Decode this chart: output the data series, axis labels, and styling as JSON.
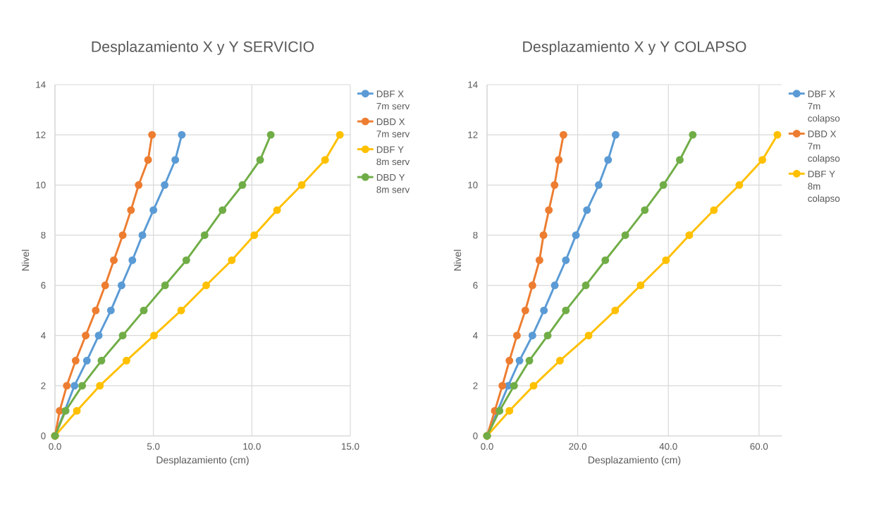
{
  "chart_data": [
    {
      "type": "line",
      "title": "Desplazamiento  X y Y SERVICIO",
      "xlabel": "Desplazamiento (cm)",
      "ylabel": "Nivel",
      "xlim": [
        0,
        15
      ],
      "ylim": [
        0,
        14
      ],
      "xticks": [
        {
          "value": 0,
          "label": "0.0"
        },
        {
          "value": 5,
          "label": "5.0"
        },
        {
          "value": 10,
          "label": "10.0"
        },
        {
          "value": 15,
          "label": "15.0"
        }
      ],
      "yticks": [
        0,
        2,
        4,
        6,
        8,
        10,
        12,
        14
      ],
      "grid": true,
      "legend": "right",
      "marker": "circle",
      "series": [
        {
          "name": "DBF X 7m serv",
          "color": "#5b9bd5",
          "x": [
            0,
            0.45,
            0.99,
            1.62,
            2.22,
            2.84,
            3.38,
            3.93,
            4.44,
            5.0,
            5.57,
            6.11,
            6.44
          ],
          "values": [
            0,
            null,
            2,
            3,
            4,
            5,
            6,
            7,
            8,
            9,
            10,
            11,
            12
          ]
        },
        {
          "name": "DBD X 7m serv",
          "color": "#ed7d31",
          "x": [
            0,
            0.24,
            0.6,
            1.05,
            1.56,
            2.07,
            2.55,
            2.99,
            3.44,
            3.86,
            4.25,
            4.73,
            4.93
          ],
          "values": [
            0,
            1,
            2,
            3,
            4,
            5,
            6,
            7,
            8,
            9,
            10,
            11,
            12
          ]
        },
        {
          "name": "DBF Y 8m serv",
          "color": "#ffc000",
          "x": [
            0,
            1.11,
            2.28,
            3.63,
            5.03,
            6.41,
            7.68,
            8.98,
            10.12,
            11.28,
            12.53,
            13.72,
            14.47
          ],
          "values": [
            0,
            1,
            2,
            3,
            4,
            5,
            6,
            7,
            8,
            9,
            10,
            11,
            12
          ]
        },
        {
          "name": "DBD Y 8m serv",
          "color": "#70ad47",
          "x": [
            0,
            0.54,
            1.38,
            2.36,
            3.44,
            4.51,
            5.59,
            6.67,
            7.6,
            8.51,
            9.52,
            10.42,
            10.96
          ],
          "values": [
            0,
            1,
            2,
            3,
            4,
            5,
            6,
            7,
            8,
            9,
            10,
            11,
            12
          ]
        }
      ]
    },
    {
      "type": "line",
      "title": "Desplazamiento  X y Y COLAPSO",
      "xlabel": "Desplazamiento (cm)",
      "ylabel": "Nivel",
      "xlim": [
        0,
        65
      ],
      "ylim": [
        0,
        14
      ],
      "xticks": [
        {
          "value": 0,
          "label": "0.0"
        },
        {
          "value": 20,
          "label": "20.0"
        },
        {
          "value": 40,
          "label": "40.0"
        },
        {
          "value": 60,
          "label": "60.0"
        }
      ],
      "yticks": [
        0,
        2,
        4,
        6,
        8,
        10,
        12,
        14
      ],
      "grid": true,
      "legend": "right",
      "marker": "circle",
      "series": [
        {
          "name": "DBF X 7m colapso",
          "color": "#5b9bd5",
          "x": [
            0,
            2.33,
            4.67,
            7.16,
            10.01,
            12.55,
            14.94,
            17.38,
            19.61,
            22.04,
            24.64,
            26.71,
            28.37
          ],
          "values": [
            0,
            null,
            2,
            3,
            4,
            5,
            6,
            7,
            8,
            9,
            10,
            11,
            12
          ]
        },
        {
          "name": "DBD X 7m colapso",
          "color": "#ed7d31",
          "x": [
            0,
            1.71,
            3.37,
            4.93,
            6.59,
            8.45,
            10.01,
            11.57,
            12.45,
            13.64,
            14.89,
            15.82,
            16.86
          ],
          "values": [
            0,
            1,
            2,
            3,
            4,
            5,
            6,
            7,
            8,
            9,
            10,
            11,
            12
          ]
        },
        {
          "name": "DBF Y 8m colapso",
          "color": "#ffc000",
          "x": [
            0,
            4.93,
            10.27,
            16.08,
            22.41,
            28.27,
            33.87,
            39.47,
            44.61,
            50.05,
            55.65,
            60.74,
            64.06
          ],
          "values": [
            0,
            1,
            2,
            3,
            4,
            5,
            6,
            7,
            8,
            9,
            10,
            11,
            12
          ]
        },
        {
          "color": "#70ad47",
          "x": [
            0,
            2.75,
            5.96,
            9.34,
            13.38,
            17.38,
            21.78,
            26.09,
            30.5,
            34.8,
            38.9,
            42.53,
            45.38
          ],
          "values": [
            0,
            1,
            2,
            3,
            4,
            5,
            6,
            7,
            8,
            9,
            10,
            11,
            12
          ]
        }
      ]
    }
  ]
}
